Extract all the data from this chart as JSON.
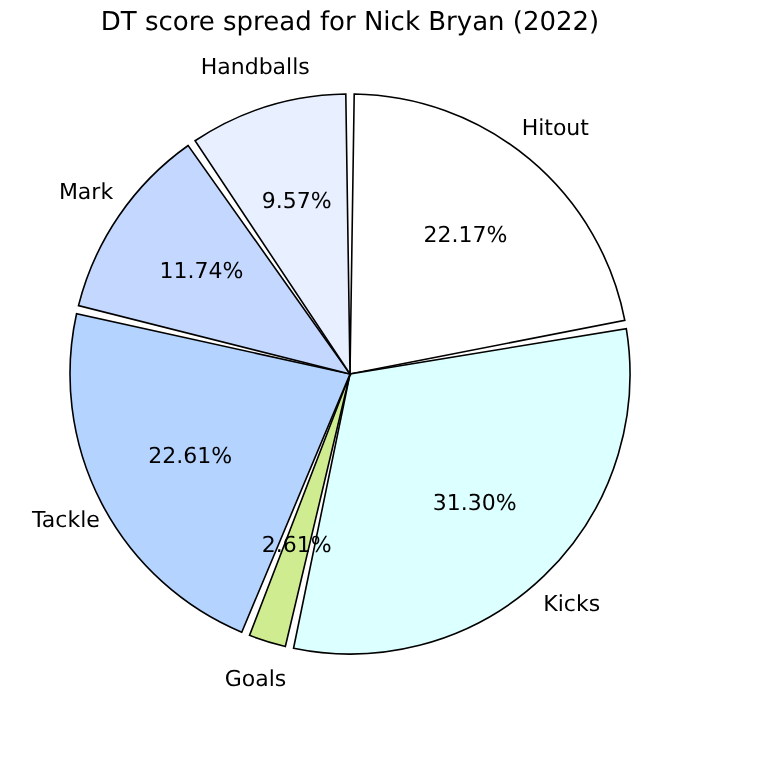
{
  "chart_data": {
    "type": "pie",
    "title": "DT score spread for Nick Bryan (2022)",
    "categories": [
      "Hitout",
      "Kicks",
      "Goals",
      "Tackle",
      "Mark",
      "Handballs"
    ],
    "values": [
      22.17,
      31.3,
      2.61,
      22.61,
      11.74,
      9.57
    ],
    "value_labels": [
      "22.17%",
      "31.30%",
      "2.61%",
      "22.61%",
      "11.74%",
      "9.57%"
    ],
    "colors": [
      "#ffffff",
      "#dcffff",
      "#d0ec90",
      "#b4d4ff",
      "#c4d8ff",
      "#e8f0ff"
    ],
    "legend": false
  }
}
